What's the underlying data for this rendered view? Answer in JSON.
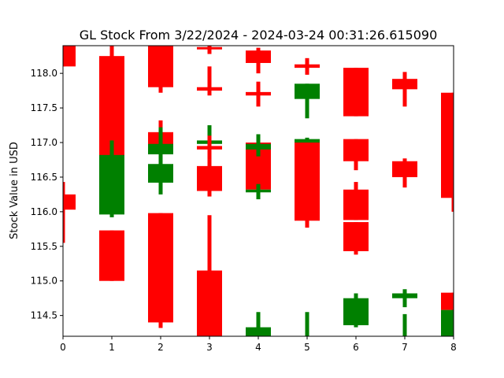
{
  "chart_data": {
    "type": "candlestick",
    "title": "GL Stock From 3/22/2024 - 2024-03-24 00:31:26.615090",
    "xlabel": "",
    "ylabel": "Stock Value in USD",
    "xlim": [
      0,
      8
    ],
    "ylim": [
      114.2,
      118.4
    ],
    "x_ticks": [
      "0",
      "1",
      "2",
      "3",
      "4",
      "5",
      "6",
      "7",
      "8"
    ],
    "y_ticks": [
      "114.5",
      "115.0",
      "115.5",
      "116.0",
      "116.5",
      "117.0",
      "117.5",
      "118.0"
    ],
    "grid": false,
    "colors": {
      "up": "#008000",
      "down": "#ff0000",
      "axis": "#000000",
      "background": "#ffffff"
    },
    "candles": [
      {
        "x": 0,
        "open": 118.4,
        "close": 118.35,
        "low": 118.35,
        "high": 118.4
      },
      {
        "x": 0,
        "open": 118.4,
        "close": 118.1,
        "low": 118.1,
        "high": 118.4
      },
      {
        "x": 0,
        "open": 116.25,
        "close": 116.03,
        "low": 115.55,
        "high": 116.43
      },
      {
        "x": 1,
        "open": 118.25,
        "close": 116.8,
        "low": 116.8,
        "high": 118.4
      },
      {
        "x": 1,
        "open": 115.96,
        "close": 116.82,
        "low": 115.92,
        "high": 117.03
      },
      {
        "x": 1,
        "open": 115.73,
        "close": 115.0,
        "low": 115.0,
        "high": 115.73
      },
      {
        "x": 2,
        "open": 118.4,
        "close": 117.8,
        "low": 117.72,
        "high": 118.4
      },
      {
        "x": 2,
        "open": 117.15,
        "close": 116.93,
        "low": 116.93,
        "high": 117.32
      },
      {
        "x": 2,
        "open": 116.83,
        "close": 116.98,
        "low": 116.72,
        "high": 117.22
      },
      {
        "x": 2,
        "open": 116.42,
        "close": 116.69,
        "low": 116.25,
        "high": 116.8
      },
      {
        "x": 2,
        "open": 115.98,
        "close": 114.4,
        "low": 114.32,
        "high": 115.98
      },
      {
        "x": 3,
        "open": 118.38,
        "close": 118.35,
        "low": 118.28,
        "high": 118.4
      },
      {
        "x": 3,
        "open": 117.8,
        "close": 117.75,
        "low": 117.68,
        "high": 118.1
      },
      {
        "x": 3,
        "open": 116.98,
        "close": 117.03,
        "low": 116.8,
        "high": 117.25
      },
      {
        "x": 3,
        "open": 116.95,
        "close": 116.9,
        "low": 116.75,
        "high": 117.1
      },
      {
        "x": 3,
        "open": 116.66,
        "close": 116.3,
        "low": 116.22,
        "high": 116.75
      },
      {
        "x": 3,
        "open": 115.15,
        "close": 114.2,
        "low": 114.2,
        "high": 115.95
      },
      {
        "x": 4,
        "open": 118.33,
        "close": 118.15,
        "low": 118.0,
        "high": 118.37
      },
      {
        "x": 4,
        "open": 117.73,
        "close": 117.68,
        "low": 117.52,
        "high": 117.88
      },
      {
        "x": 4,
        "open": 117.0,
        "close": 116.32,
        "low": 116.2,
        "high": 117.02
      },
      {
        "x": 4,
        "open": 116.9,
        "close": 116.98,
        "low": 116.8,
        "high": 117.12
      },
      {
        "x": 4,
        "open": 116.28,
        "close": 116.32,
        "low": 116.18,
        "high": 116.4
      },
      {
        "x": 4,
        "open": 114.2,
        "close": 114.33,
        "low": 114.2,
        "high": 114.55
      },
      {
        "x": 5,
        "open": 118.13,
        "close": 118.08,
        "low": 117.98,
        "high": 118.22
      },
      {
        "x": 5,
        "open": 117.63,
        "close": 117.85,
        "low": 117.35,
        "high": 117.85
      },
      {
        "x": 5,
        "open": 116.98,
        "close": 117.05,
        "low": 116.95,
        "high": 117.07
      },
      {
        "x": 5,
        "open": 117.0,
        "close": 115.87,
        "low": 115.77,
        "high": 117.0
      },
      {
        "x": 5,
        "open": 114.2,
        "close": 114.2,
        "low": 114.2,
        "high": 114.55
      },
      {
        "x": 6,
        "open": 118.08,
        "close": 117.38,
        "low": 117.38,
        "high": 118.08
      },
      {
        "x": 6,
        "open": 117.05,
        "close": 116.73,
        "low": 116.6,
        "high": 117.05
      },
      {
        "x": 6,
        "open": 116.32,
        "close": 115.88,
        "low": 115.88,
        "high": 116.43
      },
      {
        "x": 6,
        "open": 115.85,
        "close": 115.43,
        "low": 115.38,
        "high": 115.85
      },
      {
        "x": 6,
        "open": 114.36,
        "close": 114.75,
        "low": 114.33,
        "high": 114.82
      },
      {
        "x": 7,
        "open": 117.92,
        "close": 117.77,
        "low": 117.52,
        "high": 118.02
      },
      {
        "x": 7,
        "open": 116.73,
        "close": 116.5,
        "low": 116.35,
        "high": 116.77
      },
      {
        "x": 7,
        "open": 114.75,
        "close": 114.82,
        "low": 114.62,
        "high": 114.88
      },
      {
        "x": 7,
        "open": 114.2,
        "close": 114.2,
        "low": 114.2,
        "high": 114.52
      },
      {
        "x": 8,
        "open": 117.72,
        "close": 116.2,
        "low": 116.0,
        "high": 117.72
      },
      {
        "x": 8,
        "open": 114.83,
        "close": 114.58,
        "low": 114.58,
        "high": 114.83
      },
      {
        "x": 8,
        "open": 114.2,
        "close": 114.58,
        "low": 114.2,
        "high": 114.58
      }
    ]
  }
}
